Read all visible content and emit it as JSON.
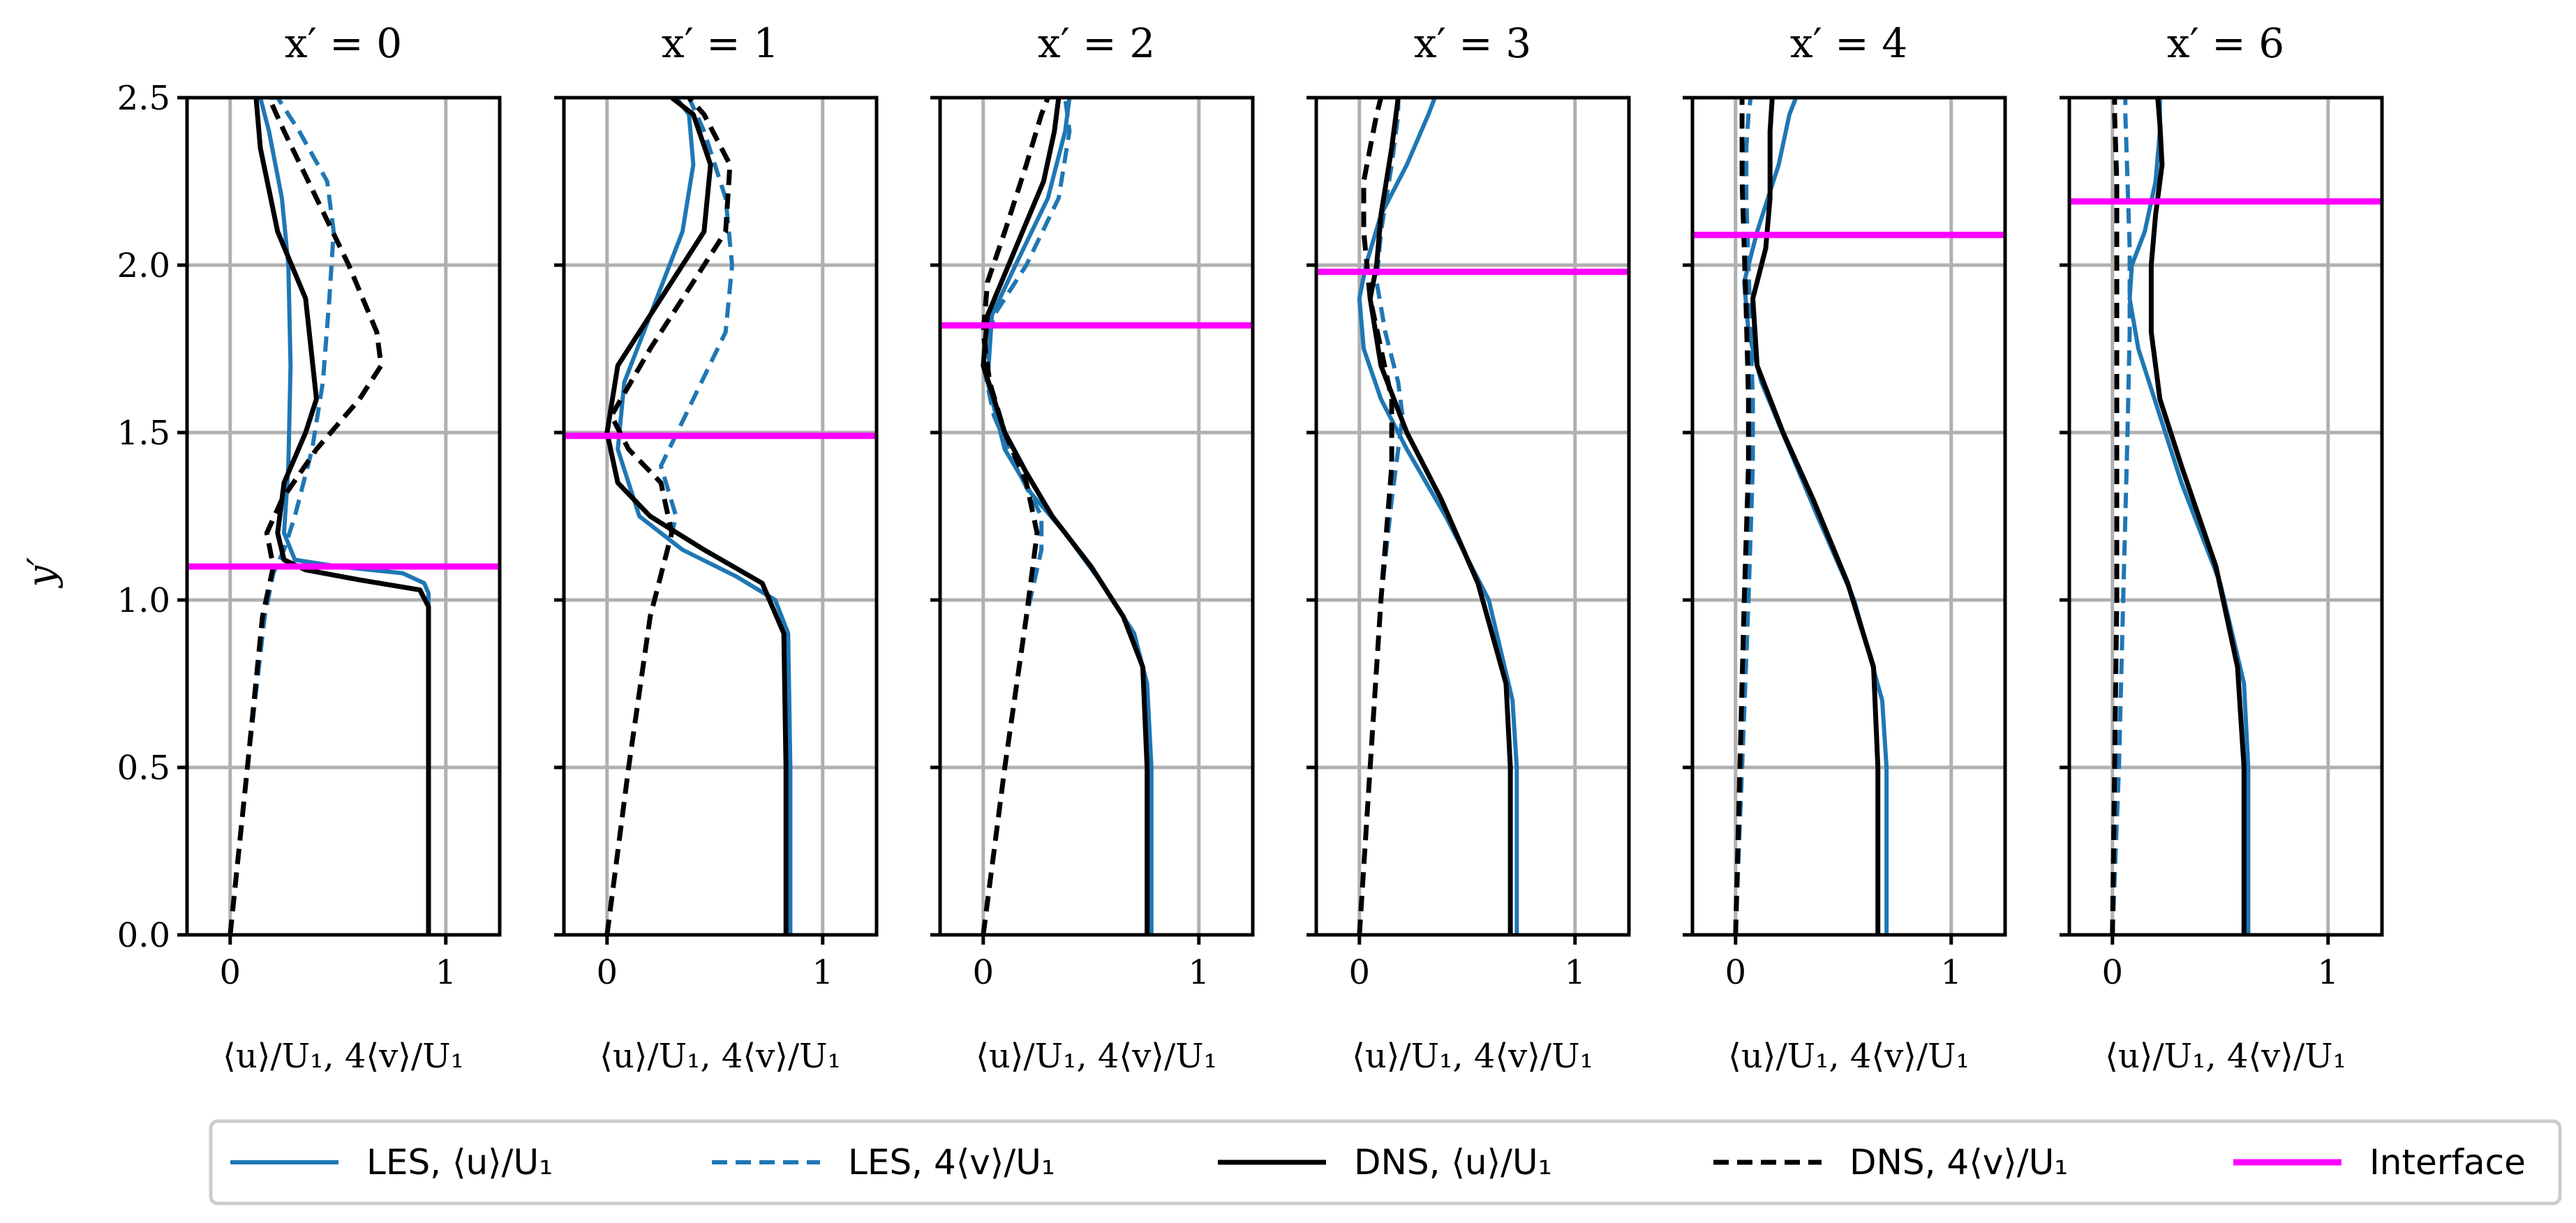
{
  "colors": {
    "les": "#1f77b4",
    "dns": "#000000",
    "interface": "#ff00ff",
    "grid": "#b0b0b0",
    "legend_border": "#cccccc"
  },
  "chart_data": {
    "type": "line",
    "ylabel": "y′",
    "ylim": [
      0,
      2.5
    ],
    "yticks": [
      "0.0",
      "0.5",
      "1.0",
      "1.5",
      "2.0",
      "2.5"
    ],
    "ytick_values": [
      0,
      0.5,
      1.0,
      1.5,
      2.0,
      2.5
    ],
    "xlim": [
      -0.2,
      1.25
    ],
    "xticks": [
      "0",
      "1"
    ],
    "xtick_values": [
      0,
      1
    ],
    "panels": [
      {
        "title": "x′ = 0",
        "xlabel": "⟨u⟩/U₁, 4⟨v⟩/U₁",
        "interface_y": 1.1,
        "series": {
          "les_u": {
            "x": [
              0.92,
              0.92,
              0.92,
              0.92,
              0.9,
              0.8,
              0.5,
              0.3,
              0.25,
              0.27,
              0.28,
              0.27,
              0.24,
              0.18,
              0.14
            ],
            "y": [
              0,
              0.5,
              0.95,
              1.02,
              1.05,
              1.08,
              1.1,
              1.12,
              1.2,
              1.4,
              1.7,
              2.0,
              2.2,
              2.4,
              2.5
            ]
          },
          "les_v": {
            "x": [
              0,
              0.08,
              0.16,
              0.2,
              0.25,
              0.3,
              0.38,
              0.43,
              0.46,
              0.48,
              0.45,
              0.32,
              0.22,
              0.18
            ],
            "y": [
              0,
              0.5,
              0.95,
              1.08,
              1.15,
              1.25,
              1.45,
              1.65,
              1.9,
              2.1,
              2.25,
              2.4,
              2.5,
              2.5
            ]
          },
          "dns_u": {
            "x": [
              0.92,
              0.92,
              0.92,
              0.88,
              0.6,
              0.35,
              0.25,
              0.22,
              0.25,
              0.35,
              0.4,
              0.35,
              0.22,
              0.14,
              0.12
            ],
            "y": [
              0,
              0.5,
              0.98,
              1.03,
              1.06,
              1.09,
              1.12,
              1.2,
              1.35,
              1.5,
              1.6,
              1.9,
              2.1,
              2.35,
              2.5
            ]
          },
          "dns_v": {
            "x": [
              0,
              0.08,
              0.15,
              0.2,
              0.17,
              0.24,
              0.4,
              0.6,
              0.7,
              0.68,
              0.55,
              0.4,
              0.25,
              0.18
            ],
            "y": [
              0,
              0.5,
              0.95,
              1.1,
              1.2,
              1.3,
              1.45,
              1.6,
              1.7,
              1.8,
              2.0,
              2.2,
              2.4,
              2.5
            ]
          }
        }
      },
      {
        "title": "x′ = 1",
        "xlabel": "⟨u⟩/U₁, 4⟨v⟩/U₁",
        "interface_y": 1.49,
        "series": {
          "les_u": {
            "x": [
              0.85,
              0.85,
              0.84,
              0.78,
              0.6,
              0.35,
              0.15,
              0.05,
              0.08,
              0.2,
              0.35,
              0.4,
              0.38,
              0.32
            ],
            "y": [
              0,
              0.5,
              0.9,
              1.0,
              1.07,
              1.15,
              1.25,
              1.45,
              1.65,
              1.85,
              2.1,
              2.3,
              2.45,
              2.5
            ]
          },
          "les_v": {
            "x": [
              0,
              0.1,
              0.2,
              0.28,
              0.32,
              0.25,
              0.4,
              0.55,
              0.58,
              0.55,
              0.45,
              0.38
            ],
            "y": [
              0,
              0.5,
              0.95,
              1.15,
              1.25,
              1.4,
              1.6,
              1.8,
              2.0,
              2.2,
              2.4,
              2.5
            ]
          },
          "dns_u": {
            "x": [
              0.83,
              0.83,
              0.82,
              0.72,
              0.45,
              0.2,
              0.05,
              0.0,
              0.05,
              0.25,
              0.45,
              0.48,
              0.4,
              0.3
            ],
            "y": [
              0,
              0.5,
              0.9,
              1.05,
              1.15,
              1.25,
              1.35,
              1.5,
              1.7,
              1.9,
              2.1,
              2.3,
              2.45,
              2.5
            ]
          },
          "dns_v": {
            "x": [
              0,
              0.1,
              0.2,
              0.3,
              0.25,
              0.1,
              0.02,
              0.2,
              0.4,
              0.55,
              0.57,
              0.45,
              0.38
            ],
            "y": [
              0,
              0.5,
              0.95,
              1.2,
              1.35,
              1.45,
              1.55,
              1.75,
              1.95,
              2.1,
              2.3,
              2.45,
              2.5
            ]
          }
        }
      },
      {
        "title": "x′ = 2",
        "xlabel": "⟨u⟩/U₁, 4⟨v⟩/U₁",
        "interface_y": 1.82,
        "series": {
          "les_u": {
            "x": [
              0.78,
              0.78,
              0.76,
              0.7,
              0.55,
              0.38,
              0.22,
              0.1,
              0.02,
              0.04,
              0.15,
              0.3,
              0.38,
              0.4
            ],
            "y": [
              0,
              0.5,
              0.75,
              0.9,
              1.05,
              1.2,
              1.32,
              1.45,
              1.65,
              1.85,
              2.0,
              2.2,
              2.4,
              2.5
            ]
          },
          "les_v": {
            "x": [
              0,
              0.1,
              0.2,
              0.27,
              0.27,
              0.15,
              0.05,
              0.0,
              0.05,
              0.2,
              0.35,
              0.4,
              0.38
            ],
            "y": [
              0,
              0.5,
              0.95,
              1.15,
              1.25,
              1.4,
              1.55,
              1.7,
              1.85,
              2.0,
              2.2,
              2.4,
              2.5
            ]
          },
          "dns_u": {
            "x": [
              0.76,
              0.76,
              0.74,
              0.65,
              0.5,
              0.32,
              0.2,
              0.1,
              0.0,
              0.02,
              0.15,
              0.28,
              0.33,
              0.35
            ],
            "y": [
              0,
              0.5,
              0.8,
              0.95,
              1.1,
              1.25,
              1.38,
              1.5,
              1.7,
              1.85,
              2.05,
              2.25,
              2.4,
              2.5
            ]
          },
          "dns_v": {
            "x": [
              0,
              0.1,
              0.2,
              0.25,
              0.2,
              0.1,
              0.03,
              0.0,
              0.02,
              0.1,
              0.2,
              0.27,
              0.3
            ],
            "y": [
              0,
              0.5,
              0.95,
              1.2,
              1.35,
              1.5,
              1.65,
              1.8,
              1.95,
              2.1,
              2.3,
              2.45,
              2.5
            ]
          }
        }
      },
      {
        "title": "x′ = 3",
        "xlabel": "⟨u⟩/U₁, 4⟨v⟩/U₁",
        "interface_y": 1.98,
        "series": {
          "les_u": {
            "x": [
              0.73,
              0.73,
              0.71,
              0.6,
              0.4,
              0.22,
              0.1,
              0.02,
              0.0,
              0.03,
              0.1,
              0.22,
              0.32,
              0.35
            ],
            "y": [
              0,
              0.5,
              0.7,
              1.0,
              1.25,
              1.45,
              1.6,
              1.75,
              1.9,
              2.0,
              2.15,
              2.3,
              2.45,
              2.5
            ]
          },
          "les_v": {
            "x": [
              0,
              0.05,
              0.1,
              0.15,
              0.18,
              0.2,
              0.18,
              0.12,
              0.08,
              0.1,
              0.15,
              0.18,
              0.18
            ],
            "y": [
              0,
              0.5,
              1.0,
              1.3,
              1.45,
              1.55,
              1.65,
              1.8,
              1.95,
              2.1,
              2.3,
              2.45,
              2.5
            ]
          },
          "dns_u": {
            "x": [
              0.7,
              0.7,
              0.68,
              0.55,
              0.38,
              0.22,
              0.1,
              0.05,
              0.08,
              0.1,
              0.15,
              0.18
            ],
            "y": [
              0,
              0.5,
              0.75,
              1.05,
              1.3,
              1.5,
              1.7,
              1.9,
              2.0,
              2.15,
              2.35,
              2.5
            ]
          },
          "dns_v": {
            "x": [
              0,
              0.05,
              0.1,
              0.15,
              0.15,
              0.1,
              0.05,
              0.02,
              0.02,
              0.05,
              0.08,
              0.1
            ],
            "y": [
              0,
              0.5,
              1.0,
              1.4,
              1.6,
              1.75,
              1.9,
              2.1,
              2.25,
              2.35,
              2.45,
              2.5
            ]
          }
        }
      },
      {
        "title": "x′ = 4",
        "xlabel": "⟨u⟩/U₁, 4⟨v⟩/U₁",
        "interface_y": 2.09,
        "series": {
          "les_u": {
            "x": [
              0.7,
              0.7,
              0.68,
              0.55,
              0.38,
              0.25,
              0.12,
              0.06,
              0.04,
              0.1,
              0.2,
              0.25,
              0.28
            ],
            "y": [
              0,
              0.5,
              0.7,
              1.0,
              1.25,
              1.45,
              1.65,
              1.8,
              1.95,
              2.1,
              2.3,
              2.45,
              2.5
            ]
          },
          "les_v": {
            "x": [
              0,
              0.03,
              0.06,
              0.08,
              0.08,
              0.07,
              0.06,
              0.05,
              0.05,
              0.06,
              0.07
            ],
            "y": [
              0,
              0.5,
              1.0,
              1.4,
              1.6,
              1.8,
              2.0,
              2.2,
              2.35,
              2.45,
              2.5
            ]
          },
          "dns_u": {
            "x": [
              0.66,
              0.66,
              0.64,
              0.52,
              0.36,
              0.22,
              0.1,
              0.08,
              0.14,
              0.16,
              0.16,
              0.17
            ],
            "y": [
              0,
              0.5,
              0.8,
              1.05,
              1.3,
              1.5,
              1.7,
              1.9,
              2.05,
              2.2,
              2.4,
              2.5
            ]
          },
          "dns_v": {
            "x": [
              0,
              0.02,
              0.04,
              0.06,
              0.06,
              0.05,
              0.04,
              0.03,
              0.03,
              0.03
            ],
            "y": [
              0,
              0.5,
              1.0,
              1.4,
              1.6,
              1.85,
              2.05,
              2.25,
              2.45,
              2.5
            ]
          }
        }
      },
      {
        "title": "x′ = 6",
        "xlabel": "⟨u⟩/U₁, 4⟨v⟩/U₁",
        "interface_y": 2.19,
        "series": {
          "les_u": {
            "x": [
              0.63,
              0.63,
              0.61,
              0.5,
              0.32,
              0.22,
              0.12,
              0.08,
              0.09,
              0.15,
              0.2,
              0.22,
              0.22
            ],
            "y": [
              0,
              0.5,
              0.75,
              1.05,
              1.35,
              1.55,
              1.75,
              1.9,
              2.0,
              2.1,
              2.25,
              2.4,
              2.5
            ]
          },
          "les_v": {
            "x": [
              0,
              0.03,
              0.05,
              0.07,
              0.08,
              0.08,
              0.07,
              0.06,
              0.06
            ],
            "y": [
              0,
              0.5,
              1.0,
              1.5,
              1.8,
              2.05,
              2.25,
              2.45,
              2.5
            ]
          },
          "dns_u": {
            "x": [
              0.61,
              0.61,
              0.58,
              0.48,
              0.32,
              0.22,
              0.18,
              0.18,
              0.2,
              0.23,
              0.22,
              0.21
            ],
            "y": [
              0,
              0.5,
              0.8,
              1.1,
              1.4,
              1.6,
              1.8,
              2.0,
              2.15,
              2.3,
              2.42,
              2.5
            ]
          },
          "dns_v": {
            "x": [
              0,
              0.01,
              0.02,
              0.02,
              0.02,
              0.02,
              0.02,
              0.01,
              0.01
            ],
            "y": [
              0,
              0.5,
              1.0,
              1.5,
              1.8,
              2.05,
              2.25,
              2.45,
              2.5
            ]
          }
        }
      }
    ],
    "legend": [
      {
        "key": "les_u",
        "label": "LES, ⟨u⟩/U₁",
        "style": "solid"
      },
      {
        "key": "les_v",
        "label": "LES, 4⟨v⟩/U₁",
        "style": "dashed"
      },
      {
        "key": "dns_u",
        "label": "DNS, ⟨u⟩/U₁",
        "style": "solid"
      },
      {
        "key": "dns_v",
        "label": "DNS, 4⟨v⟩/U₁",
        "style": "dashed"
      },
      {
        "key": "interface",
        "label": "Interface",
        "style": "solid"
      }
    ]
  }
}
